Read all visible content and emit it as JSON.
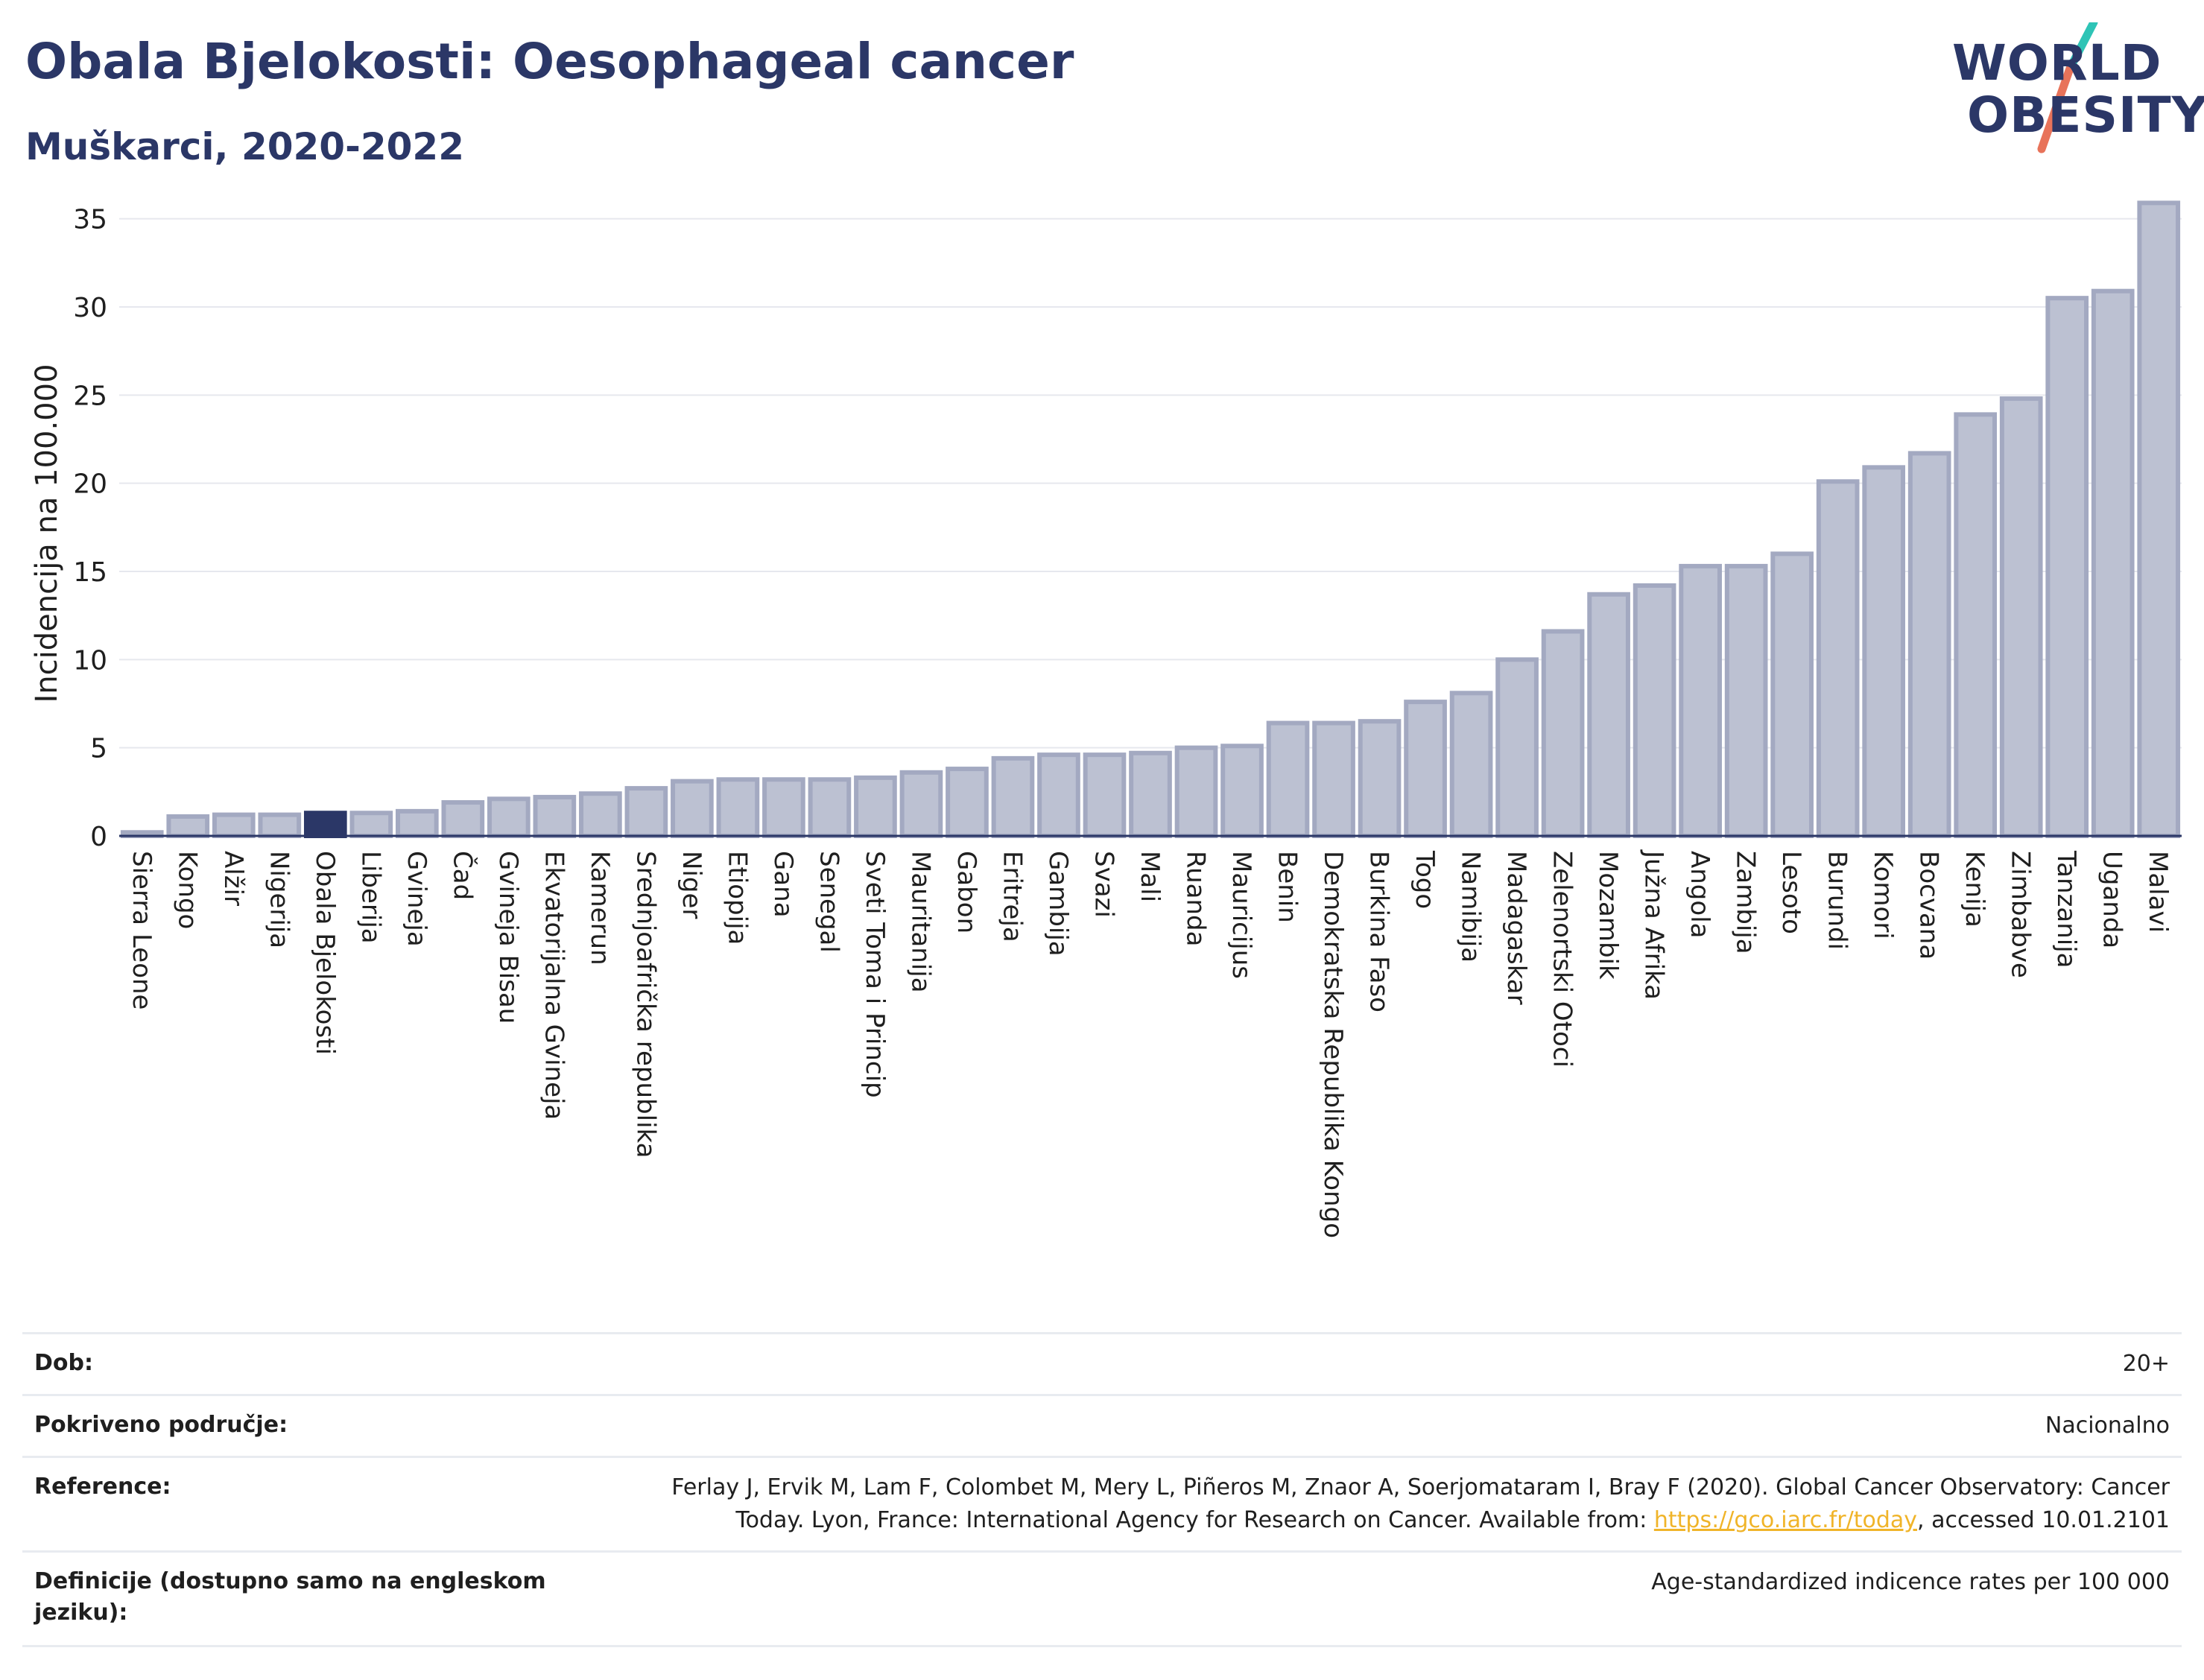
{
  "header": {
    "title": "Obala Bjelokosti: Oesophageal cancer",
    "subtitle": "Muškarci, 2020-2022"
  },
  "logo": {
    "line1": "WORLD",
    "line2": "OBESITY",
    "accent_teal": "#2ec4b6",
    "accent_red": "#e8735a"
  },
  "colors": {
    "bar_fill": "#bcc1d2",
    "bar_stroke": "#a3a9c1",
    "highlight_fill": "#2b3767",
    "text_dark": "#2b3767"
  },
  "chart_data": {
    "type": "bar",
    "ylabel": "Incidencija na 100.000",
    "ylim": [
      0,
      36
    ],
    "yticks": [
      0,
      5,
      10,
      15,
      20,
      25,
      30,
      35
    ],
    "grid": true,
    "highlight": "Obala Bjelokosti",
    "categories": [
      "Sierra Leone",
      "Kongo",
      "Alžir",
      "Nigerija",
      "Obala Bjelokosti",
      "Liberija",
      "Gvineja",
      "Čad",
      "Gvineja Bisau",
      "Ekvatorijalna Gvineja",
      "Kamerun",
      "Srednjoafrička republika",
      "Niger",
      "Etiopija",
      "Gana",
      "Senegal",
      "Sveti Toma i Princip",
      "Mauritanija",
      "Gabon",
      "Eritreja",
      "Gambija",
      "Svazi",
      "Mali",
      "Ruanda",
      "Mauricijus",
      "Benin",
      "Demokratska Republika Kongo",
      "Burkina Faso",
      "Togo",
      "Namibija",
      "Madagaskar",
      "Zelenortski Otoci",
      "Mozambik",
      "Južna Afrika",
      "Angola",
      "Zambija",
      "Lesoto",
      "Burundi",
      "Komori",
      "Bocvana",
      "Kenija",
      "Zimbabve",
      "Tanzanija",
      "Uganda",
      "Malavi"
    ],
    "values": [
      0.2,
      1.1,
      1.2,
      1.2,
      1.3,
      1.3,
      1.4,
      1.9,
      2.1,
      2.2,
      2.4,
      2.7,
      3.1,
      3.2,
      3.2,
      3.2,
      3.3,
      3.6,
      3.8,
      4.4,
      4.6,
      4.6,
      4.7,
      5.0,
      5.1,
      6.4,
      6.4,
      6.5,
      7.6,
      8.1,
      10.0,
      11.6,
      13.7,
      14.2,
      15.3,
      15.3,
      16.0,
      20.1,
      20.9,
      21.7,
      23.9,
      24.8,
      30.5,
      30.9,
      35.9
    ]
  },
  "info": {
    "rows": [
      {
        "label": "Dob:",
        "value": "20+"
      },
      {
        "label": "Pokriveno područje:",
        "value": "Nacionalno"
      },
      {
        "label": "Reference:",
        "value_line1": "Ferlay J, Ervik M, Lam F, Colombet M, Mery L, Piñeros M, Znaor A, Soerjomataram I, Bray F (2020). Global Cancer Observatory: Cancer",
        "value_line2_pre": "Today. Lyon, France: International Agency for Research on Cancer. Available from: ",
        "link": "https://gco.iarc.fr/today",
        "value_line2_post": ", accessed 10.01.2101"
      },
      {
        "label": "Definicije (dostupno samo na engleskom jeziku):",
        "value": "Age-standardized indicence rates per 100 000"
      }
    ]
  }
}
